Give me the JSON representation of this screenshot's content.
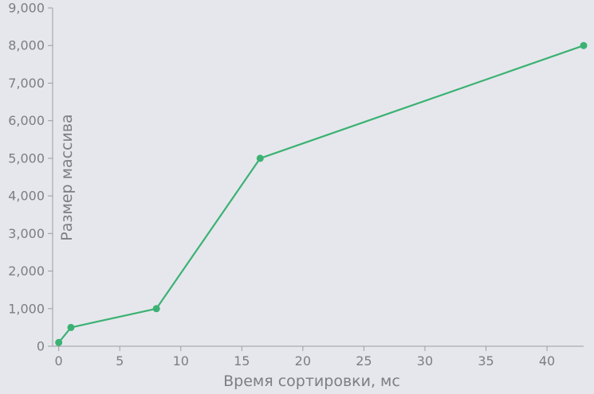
{
  "chart_data": {
    "type": "line",
    "xlabel": "Время сортировки, мс",
    "ylabel": "Размер массива",
    "xlim": [
      -0.5,
      43
    ],
    "ylim": [
      0,
      9000
    ],
    "x_ticks": [
      0,
      5,
      10,
      15,
      20,
      25,
      30,
      35,
      40
    ],
    "x_tick_labels": [
      "0",
      "5",
      "10",
      "15",
      "20",
      "25",
      "30",
      "35",
      "40"
    ],
    "y_ticks": [
      0,
      1000,
      2000,
      3000,
      4000,
      5000,
      6000,
      7000,
      8000,
      9000
    ],
    "y_tick_labels": [
      "0",
      "1,000",
      "2,000",
      "3,000",
      "4,000",
      "5,000",
      "6,000",
      "7,000",
      "8,000",
      "9,000"
    ],
    "grid": false,
    "series": [
      {
        "color": "#3bb273",
        "x": [
          0,
          1,
          8,
          16.5,
          43
        ],
        "y": [
          100,
          500,
          1000,
          5000,
          8000
        ]
      }
    ]
  }
}
